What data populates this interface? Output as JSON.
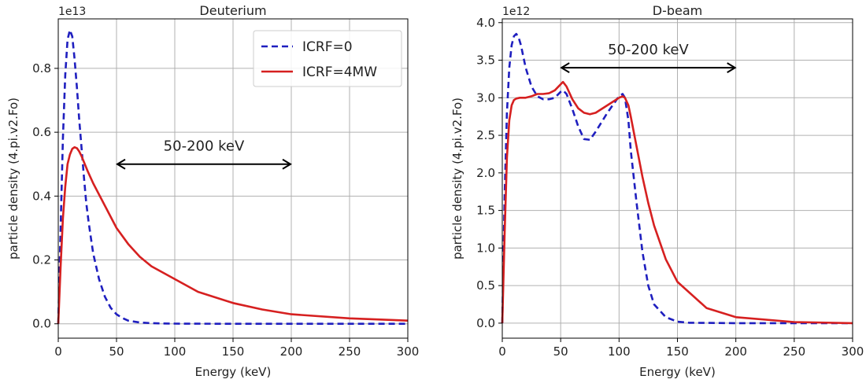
{
  "figure": {
    "background": "#ffffff"
  },
  "chart_data": [
    {
      "type": "line",
      "title": "Deuterium",
      "xlabel": "Energy (keV)",
      "ylabel": "particle density (4.pi.v2.Fo)",
      "y_offset_label": "1e13",
      "xlim": [
        0,
        300
      ],
      "ylim": [
        -0.045,
        0.955
      ],
      "x_ticks": [
        0,
        50,
        100,
        150,
        200,
        250,
        300
      ],
      "x_tick_labels": [
        "0",
        "50",
        "100",
        "150",
        "200",
        "250",
        "300"
      ],
      "y_ticks": [
        0.0,
        0.2,
        0.4,
        0.6,
        0.8
      ],
      "y_tick_labels": [
        "0.0",
        "0.2",
        "0.4",
        "0.6",
        "0.8"
      ],
      "grid": true,
      "legend": {
        "placement": "top-right"
      },
      "annotation": {
        "text": "50-200 keV",
        "x_start": 50,
        "x_end": 200,
        "y": 0.5
      },
      "series": [
        {
          "name": "ICRF=0",
          "color": "#1f1fbf",
          "style": "dashed",
          "x": [
            0,
            2,
            4,
            6,
            8,
            10,
            12,
            14,
            16,
            18,
            20,
            22,
            24,
            26,
            28,
            30,
            35,
            40,
            45,
            50,
            55,
            60,
            70,
            80,
            90,
            100,
            120,
            150,
            200,
            250,
            300
          ],
          "y": [
            0,
            0.3,
            0.58,
            0.78,
            0.89,
            0.92,
            0.9,
            0.83,
            0.74,
            0.64,
            0.55,
            0.46,
            0.38,
            0.32,
            0.27,
            0.22,
            0.14,
            0.085,
            0.05,
            0.03,
            0.018,
            0.01,
            0.004,
            0.002,
            0.001,
            0.0005,
            0.0002,
            0.0001,
            0,
            0,
            0
          ]
        },
        {
          "name": "ICRF=4MW",
          "color": "#d62020",
          "style": "solid",
          "x": [
            0,
            2,
            4,
            6,
            8,
            10,
            12,
            14,
            16,
            18,
            20,
            25,
            30,
            40,
            50,
            60,
            70,
            80,
            100,
            120,
            150,
            175,
            200,
            250,
            300
          ],
          "y": [
            0,
            0.18,
            0.33,
            0.43,
            0.5,
            0.53,
            0.548,
            0.553,
            0.55,
            0.54,
            0.525,
            0.48,
            0.44,
            0.37,
            0.3,
            0.25,
            0.21,
            0.18,
            0.14,
            0.1,
            0.065,
            0.045,
            0.03,
            0.017,
            0.01
          ]
        }
      ]
    },
    {
      "type": "line",
      "title": "D-beam",
      "xlabel": "Energy (keV)",
      "ylabel": "particle density (4.pi.v2.Fo)",
      "y_offset_label": "1e12",
      "xlim": [
        0,
        300
      ],
      "ylim": [
        -0.2,
        4.05
      ],
      "x_ticks": [
        0,
        50,
        100,
        150,
        200,
        250,
        300
      ],
      "x_tick_labels": [
        "0",
        "50",
        "100",
        "150",
        "200",
        "250",
        "300"
      ],
      "y_ticks": [
        0.0,
        0.5,
        1.0,
        1.5,
        2.0,
        2.5,
        3.0,
        3.5,
        4.0
      ],
      "y_tick_labels": [
        "0.0",
        "0.5",
        "1.0",
        "1.5",
        "2.0",
        "2.5",
        "3.0",
        "3.5",
        "4.0"
      ],
      "grid": true,
      "annotation": {
        "text": "50-200 keV",
        "x_start": 50,
        "x_end": 200,
        "y": 3.4
      },
      "series": [
        {
          "name": "ICRF=0",
          "color": "#1f1fbf",
          "style": "dashed",
          "x": [
            0,
            2,
            4,
            6,
            8,
            10,
            12,
            14,
            16,
            18,
            20,
            25,
            30,
            35,
            40,
            45,
            50,
            52,
            55,
            60,
            65,
            70,
            75,
            80,
            90,
            100,
            103,
            105,
            108,
            110,
            115,
            120,
            125,
            130,
            140,
            150,
            160,
            200,
            300
          ],
          "y": [
            0,
            1.7,
            2.8,
            3.4,
            3.7,
            3.82,
            3.85,
            3.8,
            3.7,
            3.55,
            3.4,
            3.15,
            3.02,
            2.98,
            2.98,
            3.0,
            3.08,
            3.1,
            3.05,
            2.85,
            2.62,
            2.45,
            2.44,
            2.55,
            2.8,
            3.02,
            3.05,
            3.0,
            2.7,
            2.3,
            1.6,
            0.95,
            0.5,
            0.25,
            0.08,
            0.02,
            0.005,
            0,
            0
          ]
        },
        {
          "name": "ICRF=4MW",
          "color": "#d62020",
          "style": "solid",
          "x": [
            0,
            2,
            4,
            6,
            8,
            10,
            12,
            15,
            20,
            25,
            30,
            35,
            40,
            45,
            50,
            52,
            55,
            60,
            65,
            70,
            75,
            80,
            85,
            90,
            95,
            100,
            103,
            105,
            108,
            110,
            115,
            120,
            125,
            130,
            140,
            150,
            175,
            200,
            250,
            300
          ],
          "y": [
            0,
            1.2,
            2.2,
            2.7,
            2.9,
            2.97,
            2.99,
            3.0,
            3.0,
            3.02,
            3.05,
            3.05,
            3.06,
            3.1,
            3.18,
            3.21,
            3.15,
            2.98,
            2.86,
            2.8,
            2.78,
            2.8,
            2.85,
            2.9,
            2.95,
            3.0,
            3.02,
            3.0,
            2.9,
            2.75,
            2.35,
            1.95,
            1.6,
            1.3,
            0.85,
            0.55,
            0.2,
            0.08,
            0.015,
            0.0
          ]
        }
      ]
    }
  ]
}
